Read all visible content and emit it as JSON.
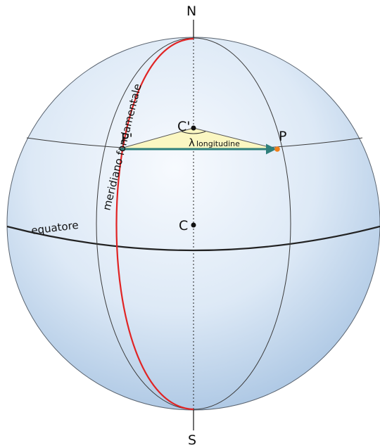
{
  "labels": {
    "north": "N",
    "south": "S",
    "center": "C",
    "parallel_center": "C'",
    "point_p": "P",
    "point_p_prime": "P'",
    "lambda_symbol": "λ",
    "lambda_subscript": "longitudine",
    "equator": "equatore",
    "prime_meridian": "meridiano fondamentale"
  },
  "colors": {
    "sphere_center": "#f7fafe",
    "sphere_mid": "#dde9f6",
    "sphere_edge": "#a8c4e2",
    "prime_meridian": "#e02424",
    "longitude_arrow": "#2e7f7b",
    "sector_fill": "#fbf7c2",
    "point_p": "#f07f1a",
    "outline": "#3a3a3a"
  }
}
